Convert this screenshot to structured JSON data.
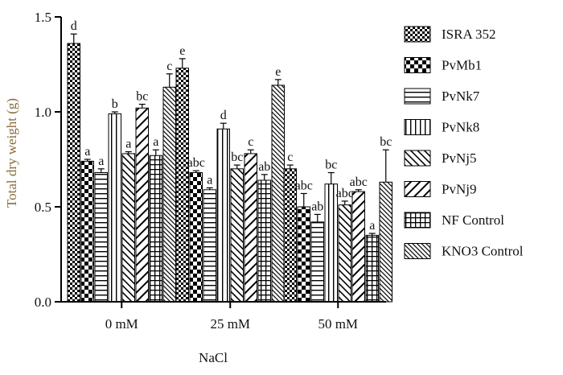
{
  "chart_data": {
    "type": "bar",
    "title": "",
    "xlabel": "NaCl",
    "ylabel": "Total dry weight (g)",
    "ylim": [
      0,
      1.5
    ],
    "yticks": [
      "0.0",
      "0.5",
      "1.0",
      "1.5"
    ],
    "ytick_values": [
      0,
      0.5,
      1.0,
      1.5
    ],
    "categories": [
      "0 mM",
      "25 mM",
      "50 mM"
    ],
    "legend_position": "right",
    "series": [
      {
        "name": "ISRA 352",
        "pattern": "checker",
        "values": [
          1.36,
          1.23,
          0.7
        ],
        "errors": [
          0.05,
          0.05,
          0.02
        ],
        "letters": [
          "d",
          "e",
          "c"
        ]
      },
      {
        "name": "PvMb1",
        "pattern": "bigchecker",
        "values": [
          0.74,
          0.68,
          0.5
        ],
        "errors": [
          0.01,
          0.01,
          0.07
        ],
        "letters": [
          "a",
          "abc",
          "abc"
        ]
      },
      {
        "name": "PvNk7",
        "pattern": "hlines",
        "values": [
          0.68,
          0.59,
          0.42
        ],
        "errors": [
          0.02,
          0.01,
          0.04
        ],
        "letters": [
          "a",
          "a",
          "ab"
        ]
      },
      {
        "name": "PvNk8",
        "pattern": "vlines",
        "values": [
          0.99,
          0.91,
          0.62
        ],
        "errors": [
          0.01,
          0.03,
          0.06
        ],
        "letters": [
          "b",
          "d",
          "bc"
        ]
      },
      {
        "name": "PvNj5",
        "pattern": "diag",
        "values": [
          0.78,
          0.7,
          0.51
        ],
        "errors": [
          0.01,
          0.02,
          0.02
        ],
        "letters": [
          "a",
          "bc",
          "abc"
        ]
      },
      {
        "name": "PvNj9",
        "pattern": "backdiag",
        "values": [
          1.02,
          0.78,
          0.58
        ],
        "errors": [
          0.02,
          0.02,
          0.01
        ],
        "letters": [
          "bc",
          "c",
          "abc"
        ]
      },
      {
        "name": "NF Control",
        "pattern": "grid",
        "values": [
          0.77,
          0.64,
          0.35
        ],
        "errors": [
          0.03,
          0.03,
          0.01
        ],
        "letters": [
          "a",
          "ab",
          "a"
        ]
      },
      {
        "name": "KNO3 Control",
        "pattern": "densediag",
        "values": [
          1.13,
          1.14,
          0.63
        ],
        "errors": [
          0.07,
          0.03,
          0.17
        ],
        "letters": [
          "c",
          "e",
          "bc"
        ]
      }
    ]
  }
}
